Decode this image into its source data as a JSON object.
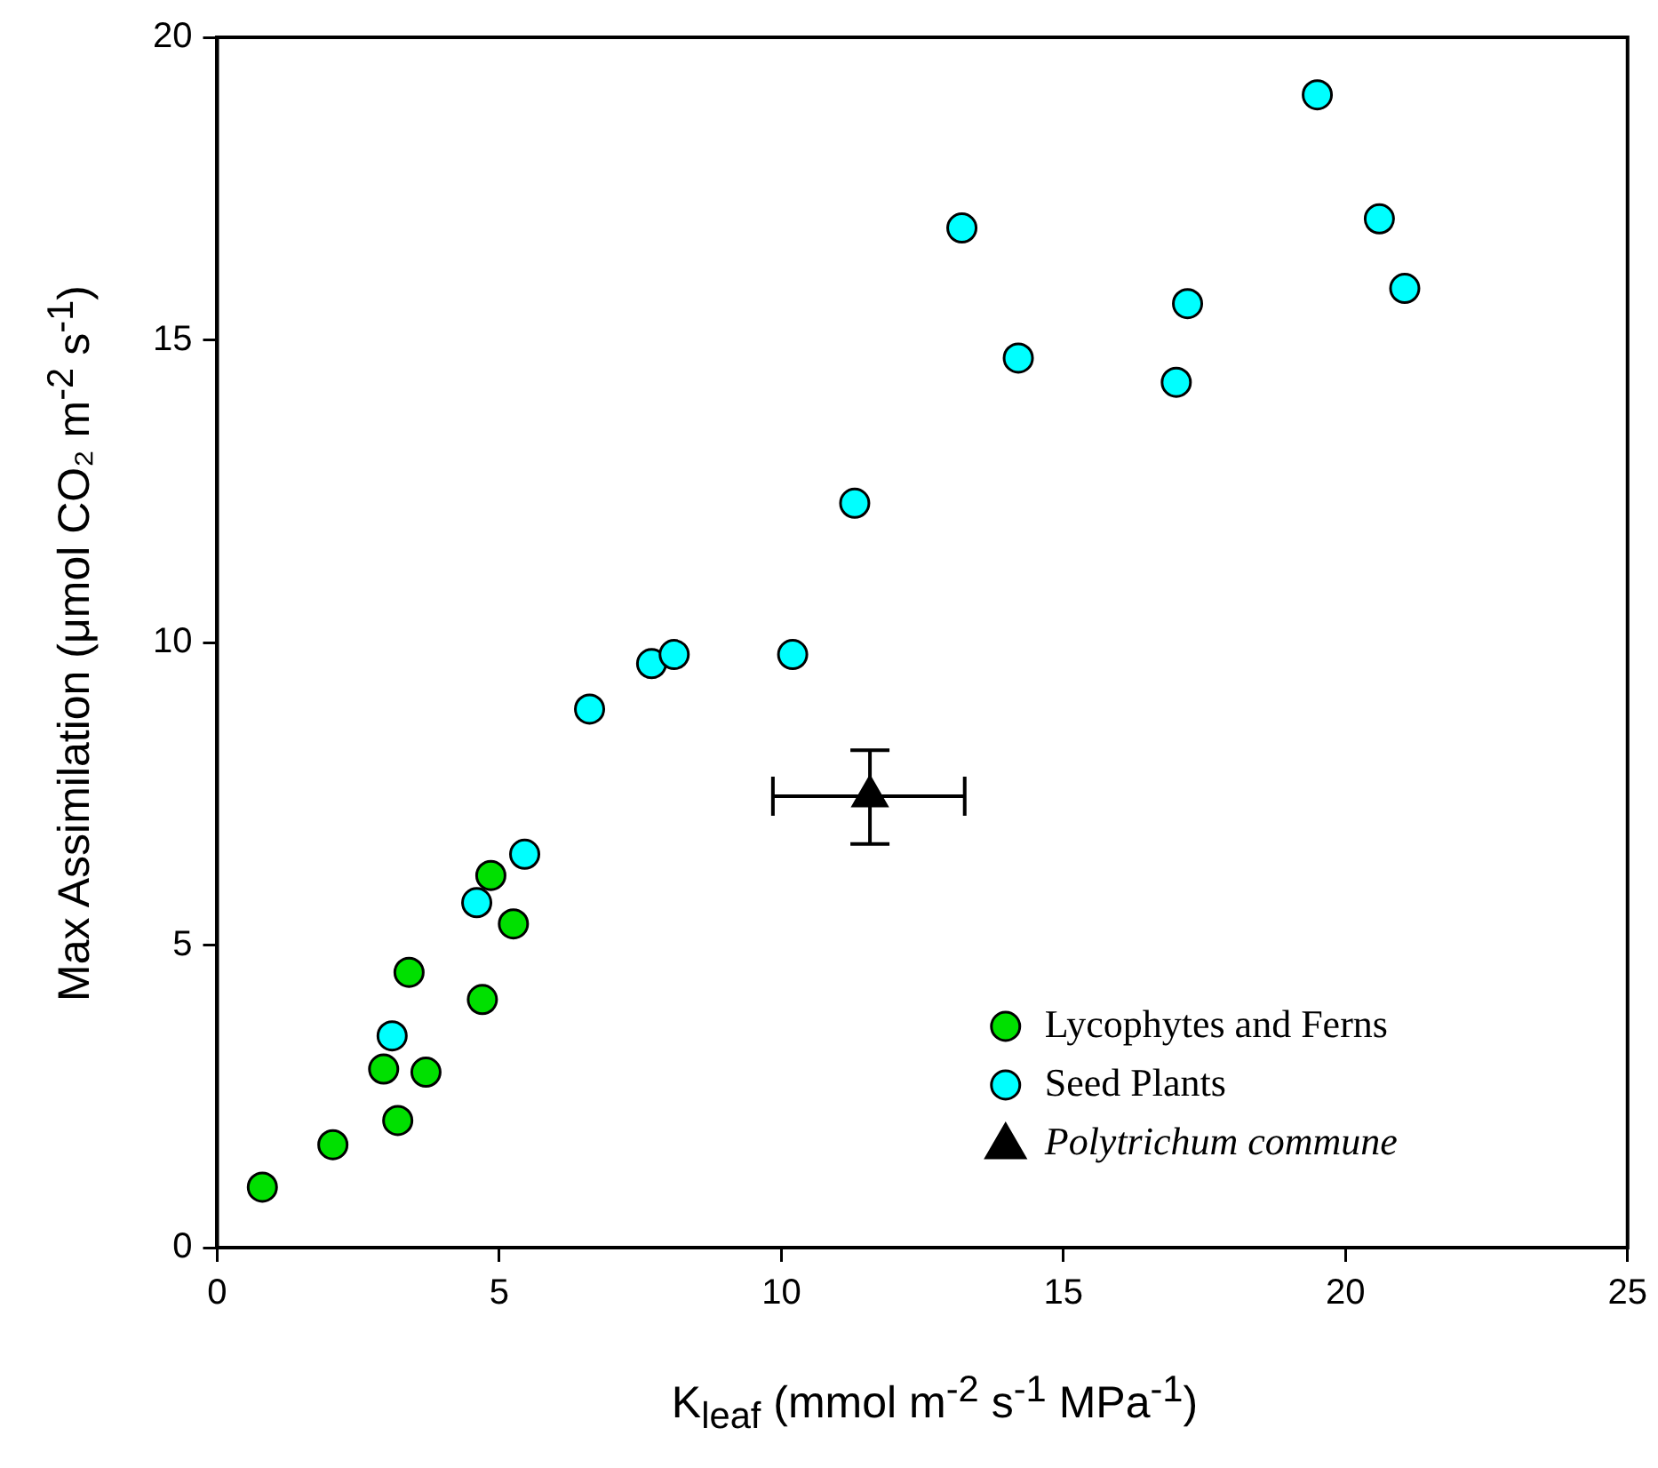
{
  "chart_data": {
    "type": "scatter",
    "xlabel": "K$_{leaf}$ (mmol m$^{-2}$ s$^{-1}$ MPa$^{-1}$)",
    "ylabel": "Max Assimilation (μmol CO₂ m$^{-2}$ s$^{-1}$)",
    "xlim": [
      0,
      25
    ],
    "xticks": [
      0,
      5,
      10,
      15,
      20,
      25
    ],
    "ylim": [
      0,
      20
    ],
    "yticks": [
      0,
      5,
      10,
      15,
      20
    ],
    "grid": false,
    "legend": "bottom right",
    "series": [
      {
        "name": "Lycophytes and Ferns",
        "color": "#00e000",
        "marker": "circle",
        "x": [
          0.8,
          2.05,
          3.2,
          2.95,
          3.7,
          3.4,
          4.7,
          4.85,
          5.25
        ],
        "values": [
          1.0,
          1.7,
          2.1,
          2.95,
          2.9,
          4.55,
          4.1,
          6.15,
          5.35
        ]
      },
      {
        "name": "Seed Plants",
        "color": "#00ffff",
        "marker": "circle",
        "x": [
          3.1,
          4.6,
          5.45,
          6.6,
          7.7,
          8.1,
          10.2,
          11.3,
          13.2,
          14.2,
          17.0,
          17.2,
          19.5,
          20.6,
          21.05
        ],
        "values": [
          3.5,
          5.7,
          6.5,
          8.9,
          9.65,
          9.8,
          9.8,
          12.3,
          16.85,
          14.7,
          14.3,
          15.6,
          19.05,
          17.0,
          15.85
        ]
      },
      {
        "name": "Polytrichum commune",
        "color": "#000000",
        "marker": "triangle",
        "x": [
          11.57
        ],
        "values": [
          7.46
        ],
        "errors": [
          [
            6.67,
            8.22
          ]
        ],
        "xerrors": [
          [
            9.85,
            13.25
          ]
        ]
      }
    ]
  }
}
